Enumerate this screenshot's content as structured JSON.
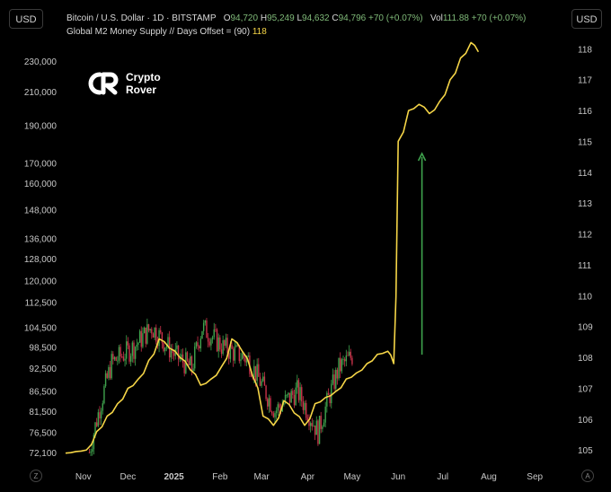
{
  "header": {
    "unit_left": "USD",
    "unit_right": "USD",
    "symbol": "Bitcoin / U.S. Dollar · 1D · BITSTAMP",
    "o_label": "O",
    "o_value": "94,720",
    "h_label": "H",
    "h_value": "95,249",
    "l_label": "L",
    "l_value": "94,632",
    "c_label": "C",
    "c_value": "94,796",
    "change": "+70 (+0.07%)",
    "vol_label": "Vol",
    "vol_value": "111.88",
    "change2": "+70 (+0.07%)",
    "indicator": "Global M2 Money Supply // Days Offset = (90)",
    "indicator_value": "118"
  },
  "logo": {
    "line1": "Crypto",
    "line2": "Rover"
  },
  "corners": {
    "left": "Z",
    "right": "A"
  },
  "colors": {
    "background": "#000000",
    "m2_line": "#f5d547",
    "candle_up": "#3fa34d",
    "candle_down": "#c9324a",
    "arrow": "#3fa34d",
    "grid_text": "#c8c8c8"
  },
  "chart_data": {
    "type": "line",
    "log_scale_left": true,
    "x_ticks": [
      "Nov",
      "Dec",
      "2025",
      "Feb",
      "Mar",
      "Apr",
      "May",
      "Jun",
      "Jul",
      "Aug",
      "Sep"
    ],
    "y_left_ticks": [
      230000,
      210000,
      190000,
      170000,
      160000,
      148000,
      136000,
      128000,
      120000,
      112500,
      104500,
      98500,
      92500,
      86500,
      81500,
      76500,
      72100
    ],
    "y_left_labels": [
      "230,000",
      "210,000",
      "190,000",
      "170,000",
      "160,000",
      "148,000",
      "136,000",
      "128,000",
      "120,000",
      "112,500",
      "104,500",
      "98,500",
      "92,500",
      "86,500",
      "81,500",
      "76,500",
      "72,100"
    ],
    "y_right_ticks": [
      118,
      117,
      116,
      115,
      114,
      113,
      112,
      111,
      110,
      109,
      108,
      107,
      106,
      105
    ],
    "series": [
      {
        "name": "Global M2 Money Supply // Days Offset = (90)",
        "axis": "right",
        "x": [
          "2024-10-20",
          "2024-10-27",
          "2024-11-03",
          "2024-11-10",
          "2024-11-17",
          "2024-11-24",
          "2024-12-01",
          "2024-12-08",
          "2024-12-15",
          "2024-12-22",
          "2024-12-29",
          "2025-01-05",
          "2025-01-12",
          "2025-01-19",
          "2025-01-26",
          "2025-02-02",
          "2025-02-09",
          "2025-02-16",
          "2025-02-23",
          "2025-03-02",
          "2025-03-09",
          "2025-03-16",
          "2025-03-23",
          "2025-03-30",
          "2025-04-06",
          "2025-04-13",
          "2025-04-20",
          "2025-04-27",
          "2025-05-04",
          "2025-05-11",
          "2025-05-18",
          "2025-05-25",
          "2025-05-29",
          "2025-06-01",
          "2025-06-08",
          "2025-06-15",
          "2025-06-22",
          "2025-06-29",
          "2025-07-06",
          "2025-07-13",
          "2025-07-20",
          "2025-07-25"
        ],
        "y": [
          104.9,
          104.95,
          105.0,
          105.6,
          106.1,
          106.5,
          107.0,
          107.3,
          107.9,
          108.6,
          108.3,
          108.0,
          107.6,
          107.1,
          107.3,
          107.7,
          108.6,
          108.2,
          107.4,
          106.1,
          105.8,
          106.6,
          106.2,
          105.8,
          106.5,
          106.7,
          106.9,
          107.3,
          107.5,
          107.8,
          108.1,
          108.2,
          107.8,
          115.0,
          116.0,
          116.2,
          115.9,
          116.3,
          117.0,
          117.7,
          118.2,
          117.9
        ]
      },
      {
        "name": "BTC daily",
        "axis": "left",
        "x": [
          "2024-11-05",
          "2024-11-20",
          "2024-12-05",
          "2024-12-17",
          "2025-01-02",
          "2025-01-13",
          "2025-01-20",
          "2025-02-03",
          "2025-02-20",
          "2025-03-10",
          "2025-03-25",
          "2025-04-08",
          "2025-04-22",
          "2025-05-01"
        ],
        "y": [
          72100,
          94000,
          98500,
          104500,
          96000,
          92500,
          104500,
          98500,
          95000,
          81500,
          86500,
          76500,
          92500,
          96000
        ]
      }
    ],
    "annotations": [
      "up-arrow"
    ],
    "grid": false
  }
}
